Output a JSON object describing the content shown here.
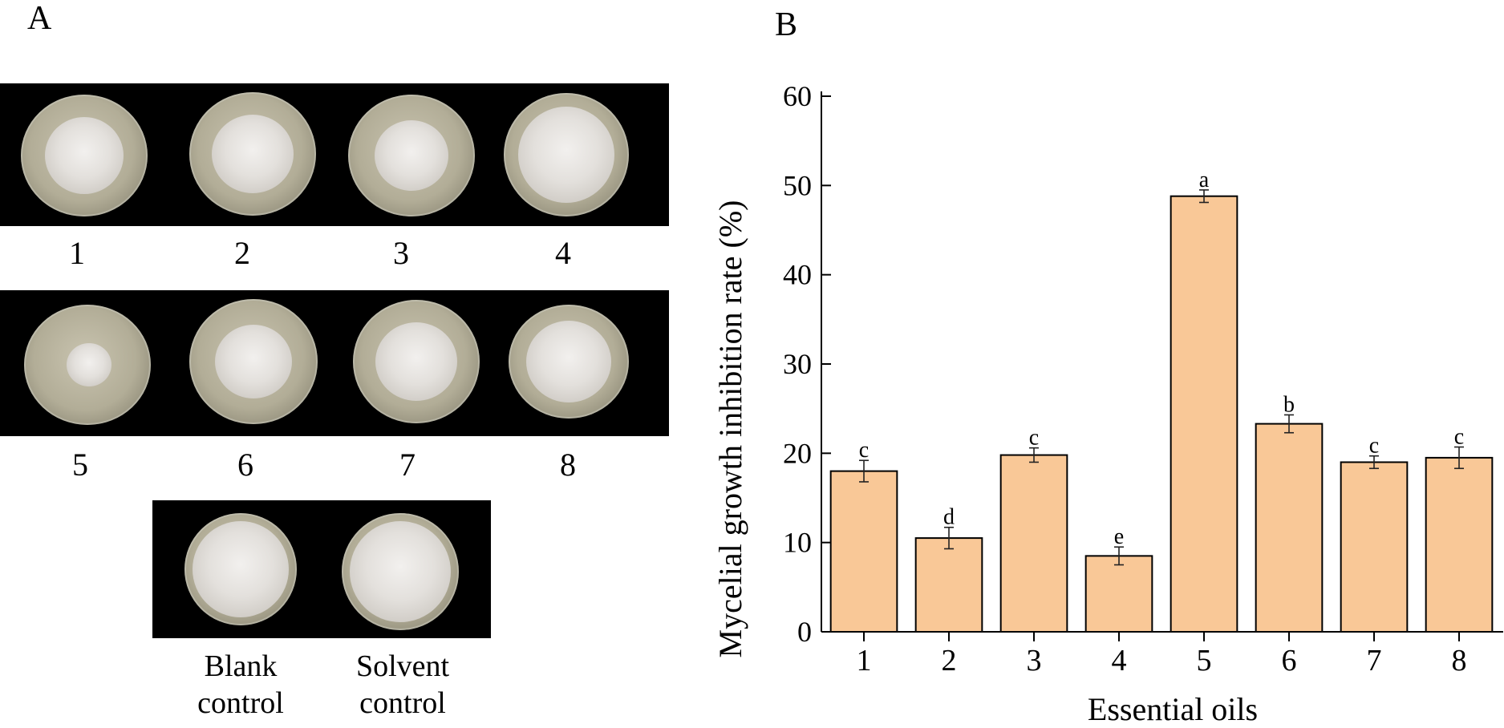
{
  "panels": {
    "a_letter": "A",
    "b_letter": "B"
  },
  "plates": {
    "row1_labels": [
      "1",
      "2",
      "3",
      "4"
    ],
    "row2_labels": [
      "5",
      "6",
      "7",
      "8"
    ],
    "controls": [
      {
        "line1": "Blank",
        "line2": "control"
      },
      {
        "line1": "Solvent",
        "line2": "control"
      }
    ],
    "colors": {
      "strip_background": "#000000",
      "agar": "#b8b39d",
      "colony": "#e8e6e3"
    }
  },
  "chart_data": {
    "type": "bar",
    "title": "",
    "xlabel": "Essential oils",
    "ylabel": "Mycelial growth inhibition rate (%)",
    "categories": [
      "1",
      "2",
      "3",
      "4",
      "5",
      "6",
      "7",
      "8"
    ],
    "values": [
      18.0,
      10.5,
      19.8,
      8.5,
      48.8,
      23.3,
      19.0,
      19.5
    ],
    "errors": [
      1.2,
      1.2,
      0.8,
      1.0,
      0.7,
      1.0,
      0.7,
      1.2
    ],
    "significance_letters": [
      "c",
      "d",
      "c",
      "e",
      "a",
      "b",
      "c",
      "c"
    ],
    "ylim": [
      0,
      60
    ],
    "yticks": [
      "0",
      "10",
      "20",
      "30",
      "40",
      "50",
      "60"
    ],
    "bar_color": "#f9c897",
    "bar_edge_color": "#000000",
    "grid": false,
    "legend": "none"
  }
}
